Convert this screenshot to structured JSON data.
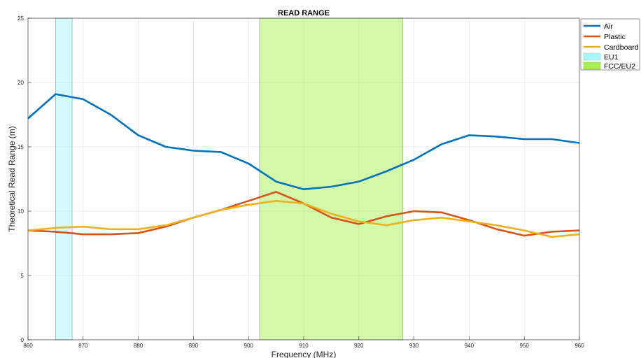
{
  "chart_data": {
    "type": "line",
    "title": "READ RANGE",
    "xlabel": "Frequency (MHz)",
    "ylabel": "Theoretical Read Range (m)",
    "xlim": [
      860,
      960
    ],
    "ylim": [
      0,
      25
    ],
    "xticks": [
      860,
      870,
      880,
      890,
      900,
      910,
      920,
      930,
      940,
      950,
      960
    ],
    "yticks": [
      0,
      5,
      10,
      15,
      20,
      25
    ],
    "grid": true,
    "legend_position": "top-right",
    "x": [
      860,
      865,
      870,
      875,
      880,
      885,
      890,
      895,
      900,
      905,
      910,
      915,
      920,
      925,
      930,
      935,
      940,
      945,
      950,
      955,
      960
    ],
    "series": [
      {
        "name": "Air",
        "color": "#0072BD",
        "values": [
          17.2,
          19.1,
          18.7,
          17.5,
          15.9,
          15.0,
          14.7,
          14.6,
          13.7,
          12.3,
          11.7,
          11.9,
          12.3,
          13.1,
          14.0,
          15.2,
          15.9,
          15.8,
          15.6,
          15.6,
          15.3
        ]
      },
      {
        "name": "Plastic",
        "color": "#D95319",
        "values": [
          8.5,
          8.4,
          8.2,
          8.2,
          8.3,
          8.8,
          9.5,
          10.1,
          10.8,
          11.5,
          10.6,
          9.5,
          9.0,
          9.6,
          10.0,
          9.9,
          9.3,
          8.6,
          8.1,
          8.4,
          8.5
        ]
      },
      {
        "name": "Cardboard",
        "color": "#EDB120",
        "values": [
          8.5,
          8.7,
          8.8,
          8.6,
          8.6,
          8.9,
          9.5,
          10.1,
          10.5,
          10.8,
          10.6,
          9.8,
          9.2,
          8.9,
          9.3,
          9.5,
          9.2,
          8.9,
          8.5,
          8.0,
          8.2
        ]
      }
    ],
    "bands": [
      {
        "name": "EU1",
        "x_start": 865,
        "x_end": 868,
        "color": "#AAF5F8"
      },
      {
        "name": "FCC/EU2",
        "x_start": 902,
        "x_end": 928,
        "color": "#A9F153"
      }
    ]
  }
}
